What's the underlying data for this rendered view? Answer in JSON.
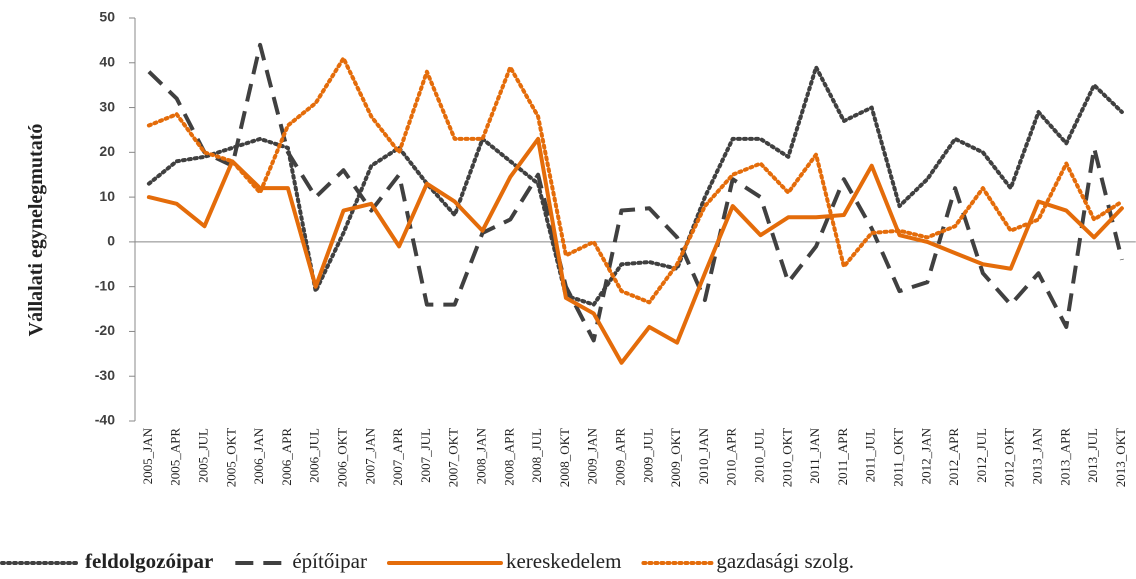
{
  "chart_data": {
    "type": "line",
    "y_label": "Vállalati egynelegmutató",
    "categories": [
      "2005_JAN",
      "2005_APR",
      "2005_JUL",
      "2005_OKT",
      "2006_JAN",
      "2006_APR",
      "2006_JUL",
      "2006_OKT",
      "2007_JAN",
      "2007_APR",
      "2007_JUL",
      "2007_OKT",
      "2008_JAN",
      "2008_APR",
      "2008_JUL",
      "2008_OKT",
      "2009_JAN",
      "2009_APR",
      "2009_JUL",
      "2009_OKT",
      "2010_JAN",
      "2010_APR",
      "2010_JUL",
      "2010_OKT",
      "2011_JAN",
      "2011_APR",
      "2011_JUL",
      "2011_OKT",
      "2012_JAN",
      "2012_APR",
      "2012_JUL",
      "2012_OKT",
      "2013_JAN",
      "2013_APR",
      "2013_JUL",
      "2013_OKT"
    ],
    "ylim": [
      -40,
      50
    ],
    "yticks": [
      -40,
      -30,
      -20,
      -10,
      0,
      10,
      20,
      30,
      40,
      50
    ],
    "series": [
      {
        "name": "feldolgozóipar",
        "color": "#404040",
        "dash": "dotted",
        "values": [
          13,
          18,
          19,
          21,
          23,
          21,
          -11,
          2,
          17,
          21,
          13,
          6,
          23,
          18,
          13,
          -12,
          -14,
          -5,
          -4.5,
          -6,
          10,
          23,
          23,
          19,
          39,
          27,
          30,
          8,
          14,
          23,
          20,
          12,
          29,
          22,
          35,
          29
        ]
      },
      {
        "name": "építőipar",
        "color": "#404040",
        "dash": "dashed",
        "values": [
          38,
          32,
          20,
          17,
          44,
          20,
          10,
          16,
          7,
          15,
          -14,
          -14,
          2,
          5,
          15,
          -10,
          -22,
          7,
          7.5,
          1,
          -13,
          14,
          10,
          -9,
          -1,
          14,
          3,
          -11,
          -9,
          12,
          -7,
          -14,
          -7,
          -19,
          21,
          -4
        ]
      },
      {
        "name": "kereskedelem",
        "color": "#e46c0a",
        "dash": "solid",
        "values": [
          10,
          8.5,
          3.5,
          18,
          12,
          12,
          -10,
          7,
          8.5,
          -1,
          13,
          9,
          2.5,
          14.5,
          23,
          -12.5,
          -16,
          -27,
          -19,
          -22.5,
          -7,
          8,
          1.5,
          5.5,
          5.5,
          6,
          17,
          1.5,
          0,
          -2.5,
          -5,
          -6,
          9,
          7,
          1,
          7.5
        ]
      },
      {
        "name": "gazdasági szolg.",
        "color": "#e46c0a",
        "dash": "dotted",
        "values": [
          26,
          28.5,
          20,
          18,
          11,
          26,
          31,
          41,
          28,
          20,
          38,
          23,
          23,
          39,
          28,
          -3,
          0,
          -11,
          -13.5,
          -5,
          8,
          15,
          17.5,
          11,
          19.5,
          -5.5,
          2,
          2.5,
          1,
          3.5,
          12,
          2.5,
          5,
          17.5,
          5,
          9
        ]
      }
    ]
  }
}
